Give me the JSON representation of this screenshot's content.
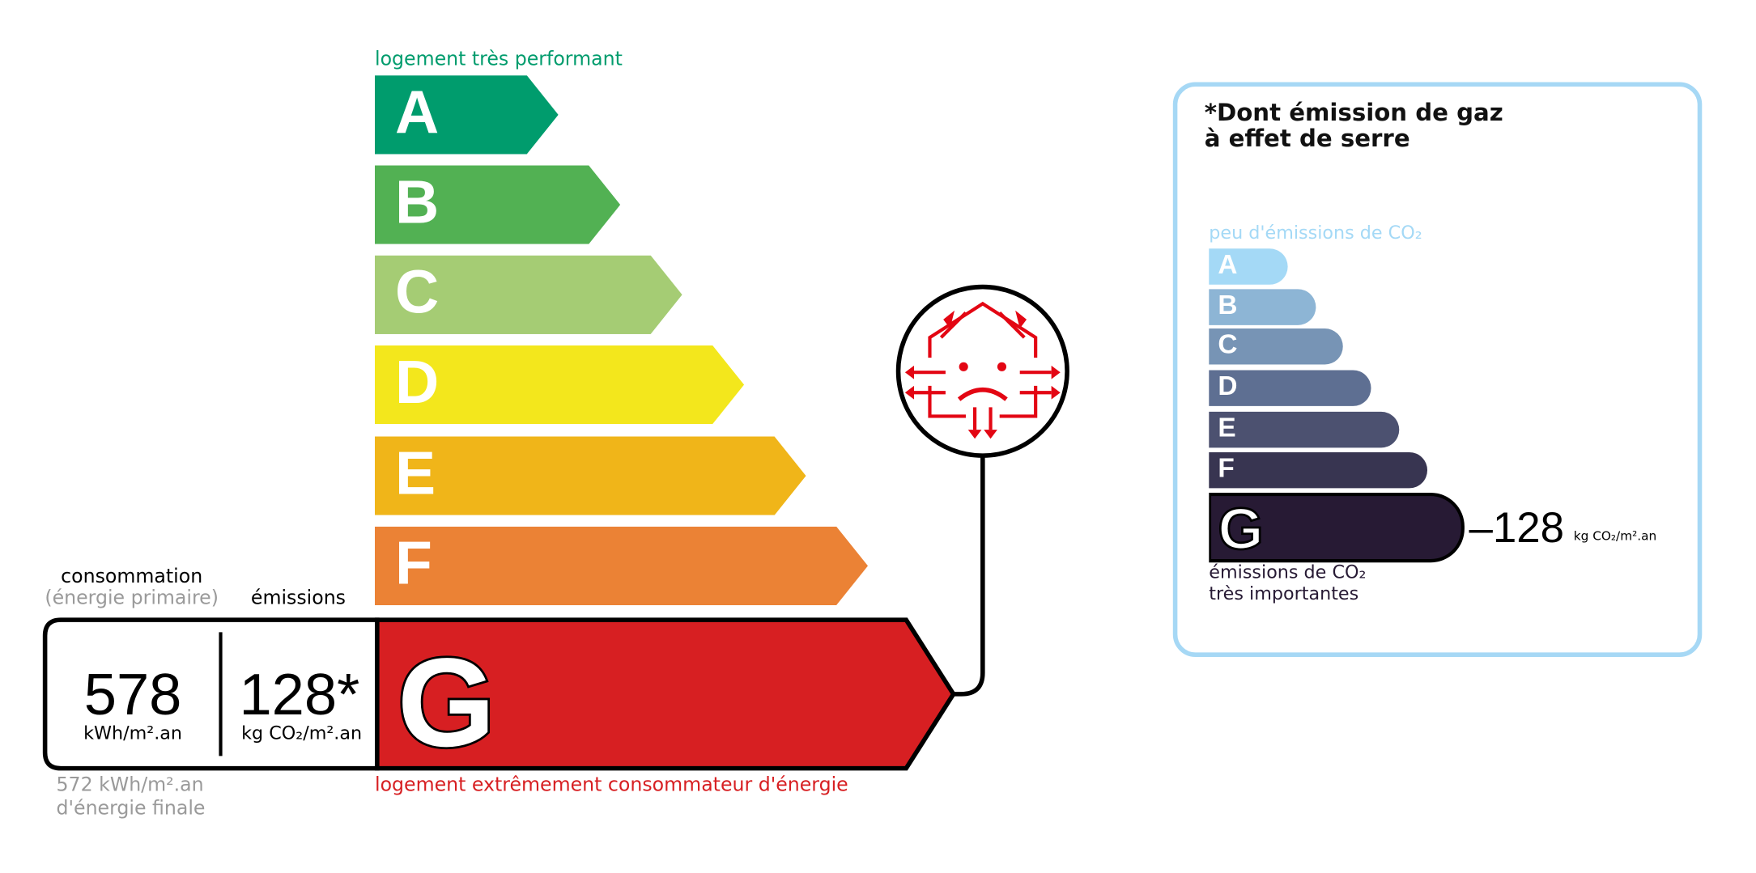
{
  "dpe": {
    "top_label": "logement très performant",
    "bottom_label": "logement extrêmement consommateur d'énergie",
    "classes": [
      {
        "letter": "A",
        "color": "#009c6d"
      },
      {
        "letter": "B",
        "color": "#52b153"
      },
      {
        "letter": "C",
        "color": "#a5cc74"
      },
      {
        "letter": "D",
        "color": "#f3e71c"
      },
      {
        "letter": "E",
        "color": "#f0b519"
      },
      {
        "letter": "F",
        "color": "#eb8235"
      },
      {
        "letter": "G",
        "color": "#d71f22"
      }
    ],
    "current_class": "G",
    "consumption_label": "consommation",
    "consumption_sublabel": "(énergie primaire)",
    "emissions_label": "émissions",
    "consumption_value": "578",
    "consumption_unit": "kWh/m².an",
    "emissions_value": "128*",
    "emissions_unit": "kg CO₂/m².an",
    "final_energy_line1": "572 kWh/m².an",
    "final_energy_line2": "d'énergie finale",
    "icon": "house-energy-loss-sad-icon"
  },
  "ges": {
    "title_line1": "*Dont émission de gaz",
    "title_line2": "à effet de serre",
    "top_label": "peu d'émissions de CO₂",
    "bottom_label_line1": "émissions de CO₂",
    "bottom_label_line2": "très importantes",
    "classes": [
      {
        "letter": "A",
        "color": "#a4d9f6"
      },
      {
        "letter": "B",
        "color": "#8db5d5"
      },
      {
        "letter": "C",
        "color": "#7794b5"
      },
      {
        "letter": "D",
        "color": "#5e6f92"
      },
      {
        "letter": "E",
        "color": "#4c5170"
      },
      {
        "letter": "F",
        "color": "#383551"
      },
      {
        "letter": "G",
        "color": "#271a34"
      }
    ],
    "current_class": "G",
    "value": "–128",
    "unit": "kg CO₂/m².an",
    "border_color": "#a6d8f5"
  }
}
